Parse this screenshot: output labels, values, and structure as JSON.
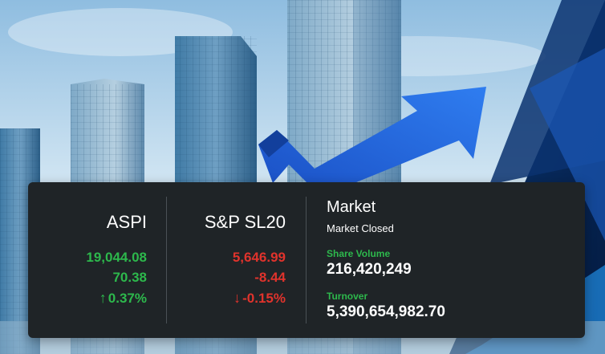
{
  "colors": {
    "panel_bg": "#1f2427",
    "up": "#2db84c",
    "down": "#e0332c",
    "accent_blue": "#1f5fd6"
  },
  "indices": [
    {
      "name": "ASPI",
      "value": "19,044.08",
      "change": "70.38",
      "percent": "0.37%",
      "direction": "up",
      "arrow": "↑"
    },
    {
      "name": "S&P SL20",
      "value": "5,646.99",
      "change": "-8.44",
      "percent": "-0.15%",
      "direction": "down",
      "arrow": "↓"
    }
  ],
  "market": {
    "title": "Market",
    "status": "Market Closed",
    "share_volume_label": "Share Volume",
    "share_volume": "216,420,249",
    "turnover_label": "Turnover",
    "turnover": "5,390,654,982.70"
  }
}
